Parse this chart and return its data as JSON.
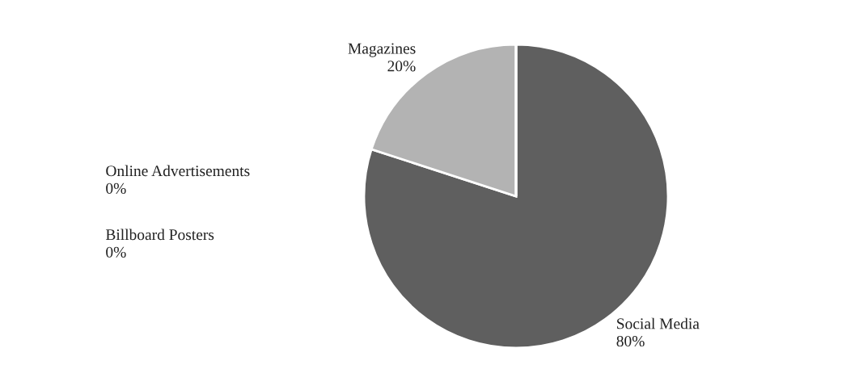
{
  "chart_data": {
    "type": "pie",
    "categories": [
      "Social Media",
      "Magazines",
      "Online Advertisements",
      "Billboard Posters"
    ],
    "values": [
      80,
      20,
      0,
      0
    ],
    "colors": [
      "#5f5f5f",
      "#b3b3b3",
      "#8c8c8c",
      "#d9d9d9"
    ],
    "value_labels": [
      "80%",
      "20%",
      "0%",
      "0%"
    ],
    "legend": false
  }
}
